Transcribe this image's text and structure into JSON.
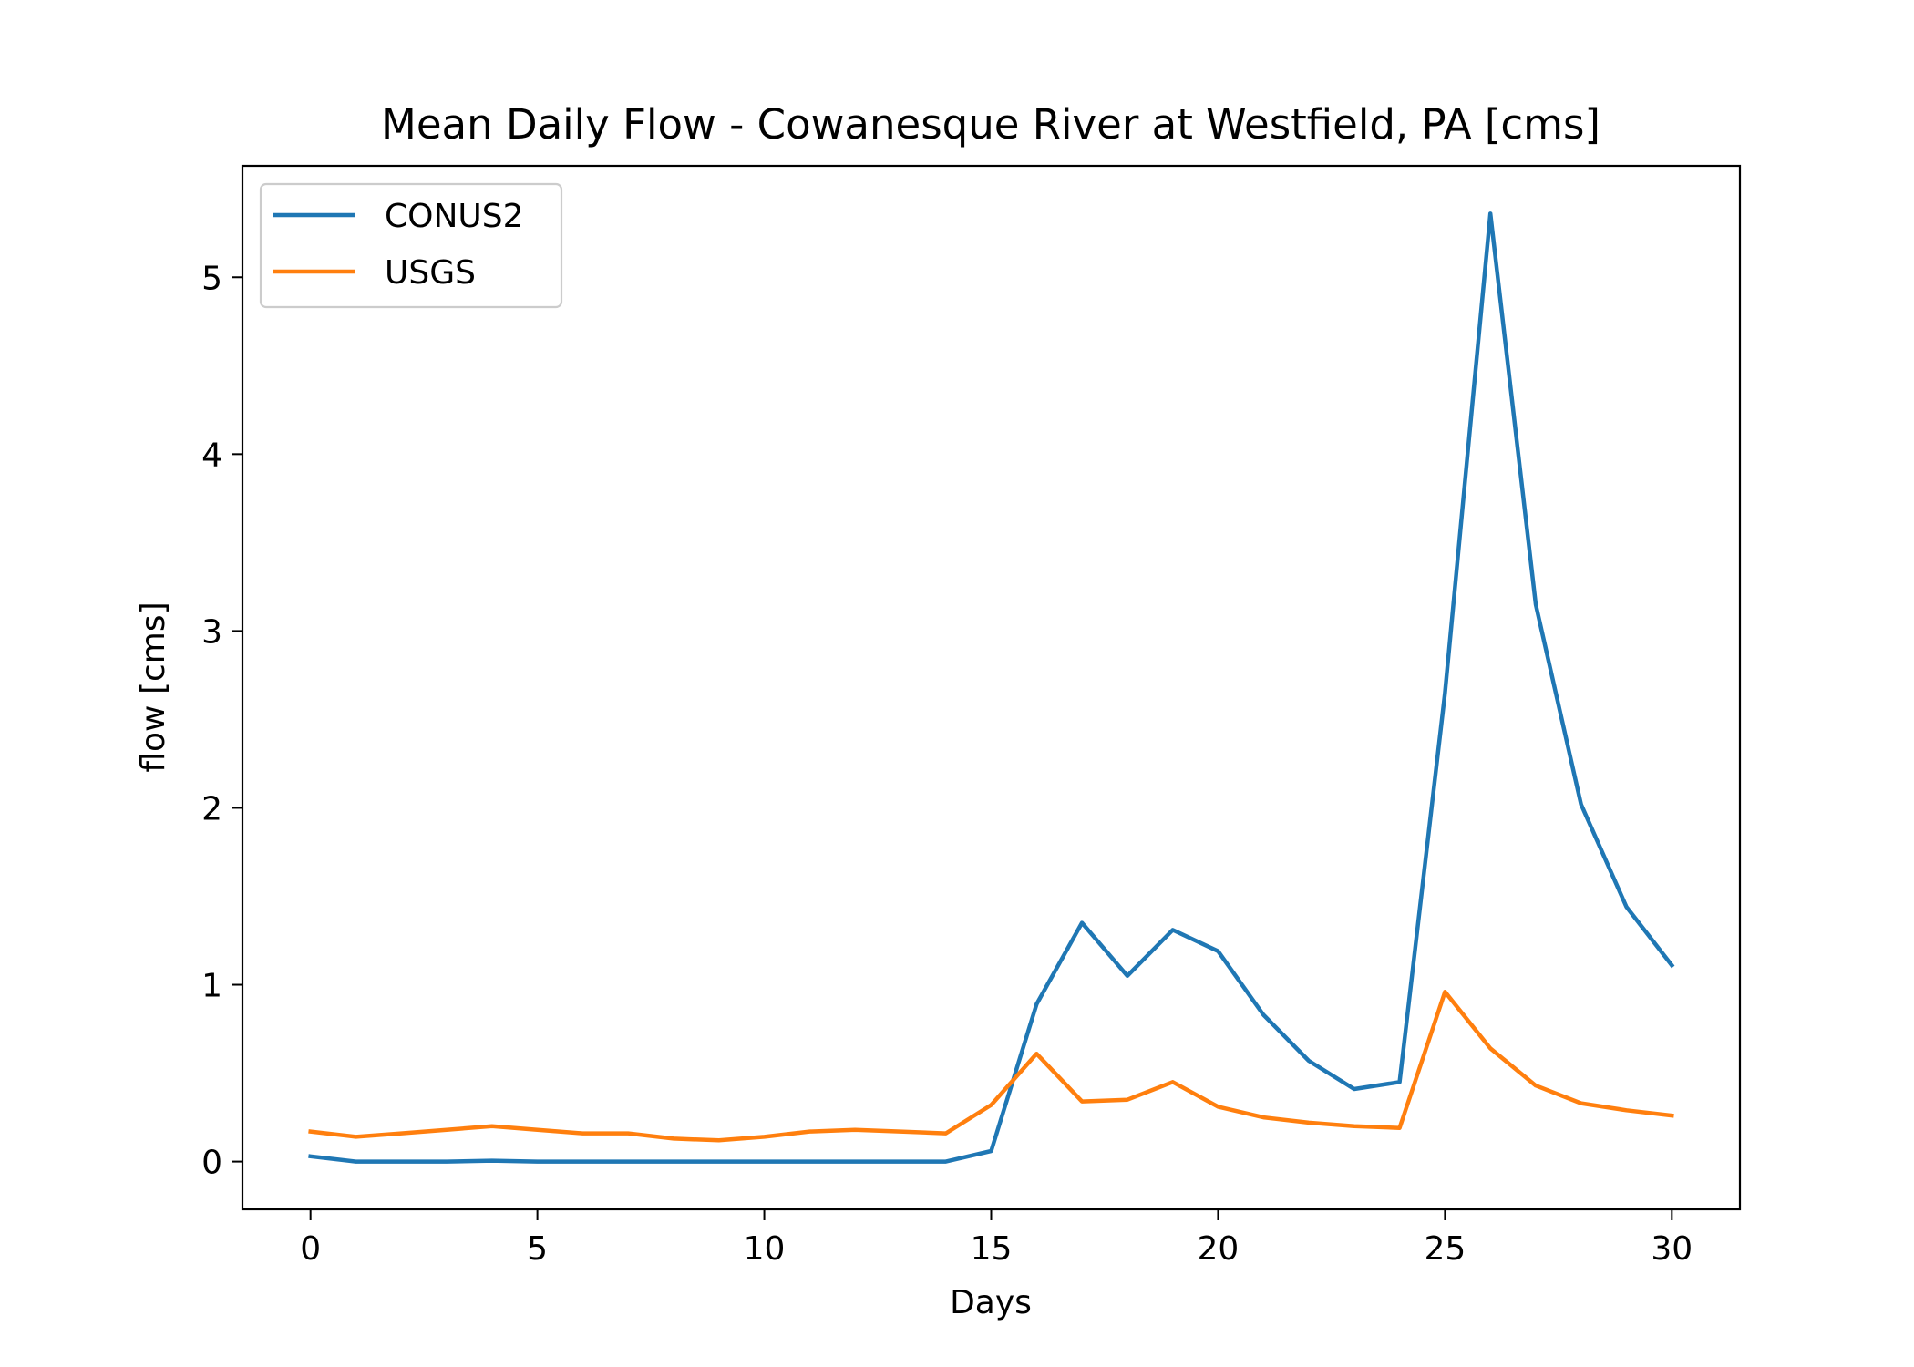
{
  "chart_data": {
    "type": "line",
    "title": "Mean Daily Flow - Cowanesque River at Westfield, PA [cms]",
    "xlabel": "Days",
    "ylabel": "flow [cms]",
    "xlim": [
      -1.5,
      31.5
    ],
    "ylim": [
      -0.27,
      5.63
    ],
    "xticks": [
      0,
      5,
      10,
      15,
      20,
      25,
      30
    ],
    "yticks": [
      0,
      1,
      2,
      3,
      4,
      5
    ],
    "grid": false,
    "legend_position": "upper-left",
    "x": [
      0,
      1,
      2,
      3,
      4,
      5,
      6,
      7,
      8,
      9,
      10,
      11,
      12,
      13,
      14,
      15,
      16,
      17,
      18,
      19,
      20,
      21,
      22,
      23,
      24,
      25,
      26,
      27,
      28,
      29,
      30
    ],
    "series": [
      {
        "name": "CONUS2",
        "color": "#1f77b4",
        "values": [
          0.03,
          0.0,
          0.0,
          0.0,
          0.005,
          0.0,
          0.0,
          0.0,
          0.0,
          0.0,
          0.0,
          0.0,
          0.0,
          0.0,
          0.0,
          0.06,
          0.89,
          1.35,
          1.05,
          1.31,
          1.19,
          0.83,
          0.57,
          0.41,
          0.45,
          2.65,
          5.36,
          3.15,
          2.02,
          1.44,
          1.11
        ]
      },
      {
        "name": "USGS",
        "color": "#ff7f0e",
        "values": [
          0.17,
          0.14,
          0.16,
          0.18,
          0.2,
          0.18,
          0.16,
          0.16,
          0.13,
          0.12,
          0.14,
          0.17,
          0.18,
          0.17,
          0.16,
          0.32,
          0.61,
          0.34,
          0.35,
          0.45,
          0.31,
          0.25,
          0.22,
          0.2,
          0.19,
          0.96,
          0.64,
          0.43,
          0.33,
          0.29,
          0.26
        ]
      }
    ]
  }
}
